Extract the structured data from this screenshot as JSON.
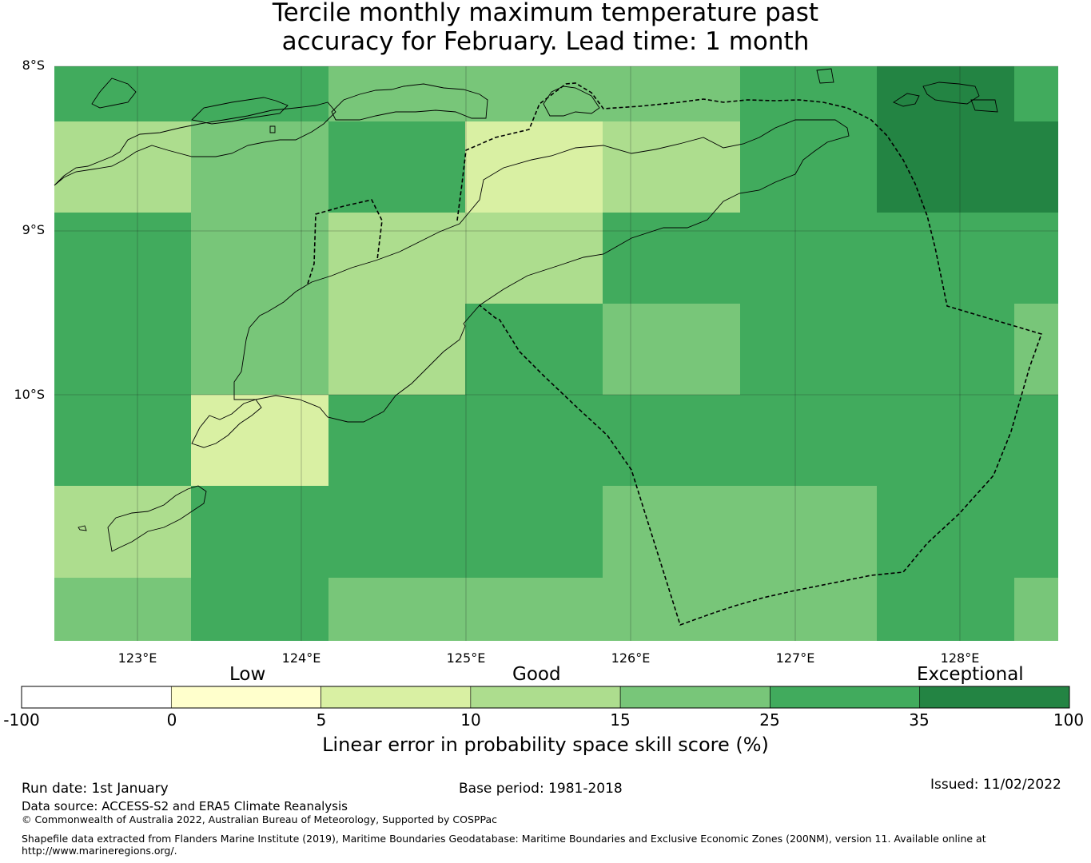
{
  "title_line1": "Tercile monthly maximum temperature past",
  "title_line2": "accuracy for February. Lead time: 1 month",
  "map": {
    "lat_labels": [
      "8°S",
      "9°S",
      "10°S"
    ],
    "lon_labels": [
      "123°E",
      "124°E",
      "125°E",
      "126°E",
      "127°E",
      "128°E"
    ],
    "cells": [
      [
        30,
        30,
        20,
        20,
        20,
        30,
        40,
        30
      ],
      [
        12,
        20,
        30,
        7,
        12,
        30,
        40,
        40
      ],
      [
        30,
        20,
        12,
        12,
        30,
        30,
        30,
        30
      ],
      [
        30,
        20,
        12,
        30,
        20,
        30,
        30,
        20
      ],
      [
        30,
        7,
        30,
        30,
        30,
        30,
        30,
        30
      ],
      [
        12,
        30,
        30,
        30,
        20,
        20,
        30,
        30
      ],
      [
        20,
        30,
        20,
        20,
        20,
        20,
        30,
        20
      ]
    ]
  },
  "colorbar": {
    "categories": [
      "Low",
      "Good",
      "Exceptional"
    ],
    "ticks": [
      "-100",
      "0",
      "5",
      "10",
      "15",
      "25",
      "35",
      "100"
    ],
    "colors": [
      "#ffffff",
      "#ffffcc",
      "#d9f0a3",
      "#addd8e",
      "#78c679",
      "#41ab5d",
      "#238443"
    ],
    "label": "Linear error in probability space skill score (%)"
  },
  "footer": {
    "run_date": "Run date: 1st January",
    "base_period": "Base period: 1981-2018",
    "issued": "Issued: 11/02/2022",
    "data_source": "Data source: ACCESS-S2 and ERA5 Climate Reanalysis",
    "copyright": "© Commonwealth of Australia 2022, Australian Bureau of Meteorology, Supported by COSPPac",
    "shapefile_line1": "Shapefile data extracted from Flanders Marine Institute (2019), Maritime Boundaries Geodatabase: Maritime Boundaries and Exclusive Economic Zones (200NM), version 11. Available online at",
    "shapefile_line2": "http://www.marineregions.org/."
  }
}
